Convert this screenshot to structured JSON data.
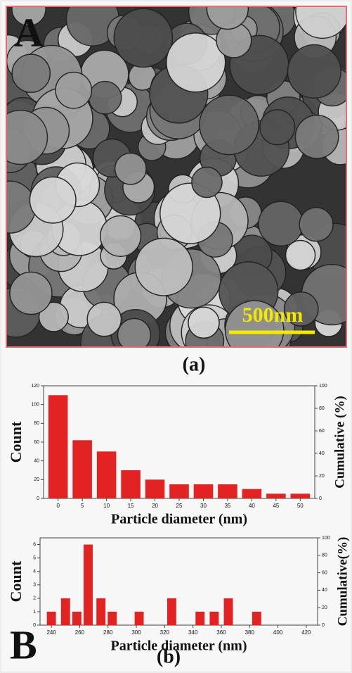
{
  "panel_a": {
    "label": "A",
    "scale_bar": "500nm",
    "caption": "(a)"
  },
  "chart_data": [
    {
      "type": "bar",
      "color": "#e32222",
      "x": [
        0,
        5,
        10,
        15,
        20,
        25,
        30,
        35,
        40,
        45,
        50
      ],
      "values": [
        110,
        62,
        50,
        30,
        20,
        15,
        15,
        15,
        10,
        5,
        5
      ],
      "xlim": [
        -3,
        53
      ],
      "xticks": [
        0,
        5,
        10,
        15,
        20,
        25,
        30,
        35,
        40,
        45,
        50
      ],
      "ylim": [
        0,
        120
      ],
      "yticks": [
        0,
        20,
        40,
        60,
        80,
        100,
        120
      ],
      "y2lim": [
        0,
        100
      ],
      "y2ticks": [
        0,
        20,
        40,
        60,
        80,
        100
      ],
      "x_label": "Particle diameter (nm)",
      "y_label": "Count",
      "y2_label": "Cumulative (%)"
    },
    {
      "type": "bar",
      "color": "#e32222",
      "x": [
        240,
        250,
        258,
        266,
        275,
        283,
        302,
        325,
        345,
        355,
        365,
        385
      ],
      "values": [
        1,
        2,
        1,
        6,
        2,
        1,
        1,
        2,
        1,
        1,
        2,
        1
      ],
      "xlim": [
        232,
        428
      ],
      "xticks": [
        240,
        260,
        280,
        300,
        320,
        340,
        360,
        380,
        400,
        420
      ],
      "ylim": [
        0,
        6.5
      ],
      "yticks": [
        0,
        1,
        2,
        3,
        4,
        5,
        6
      ],
      "y2lim": [
        0,
        100
      ],
      "y2ticks": [
        0,
        20,
        40,
        60,
        80,
        100
      ],
      "x_label": "Particle diameter (nm)",
      "y_label": "Count",
      "y2_label": "Cumulative(%)"
    }
  ],
  "panel_b": {
    "label": "B",
    "caption": "(b)"
  }
}
